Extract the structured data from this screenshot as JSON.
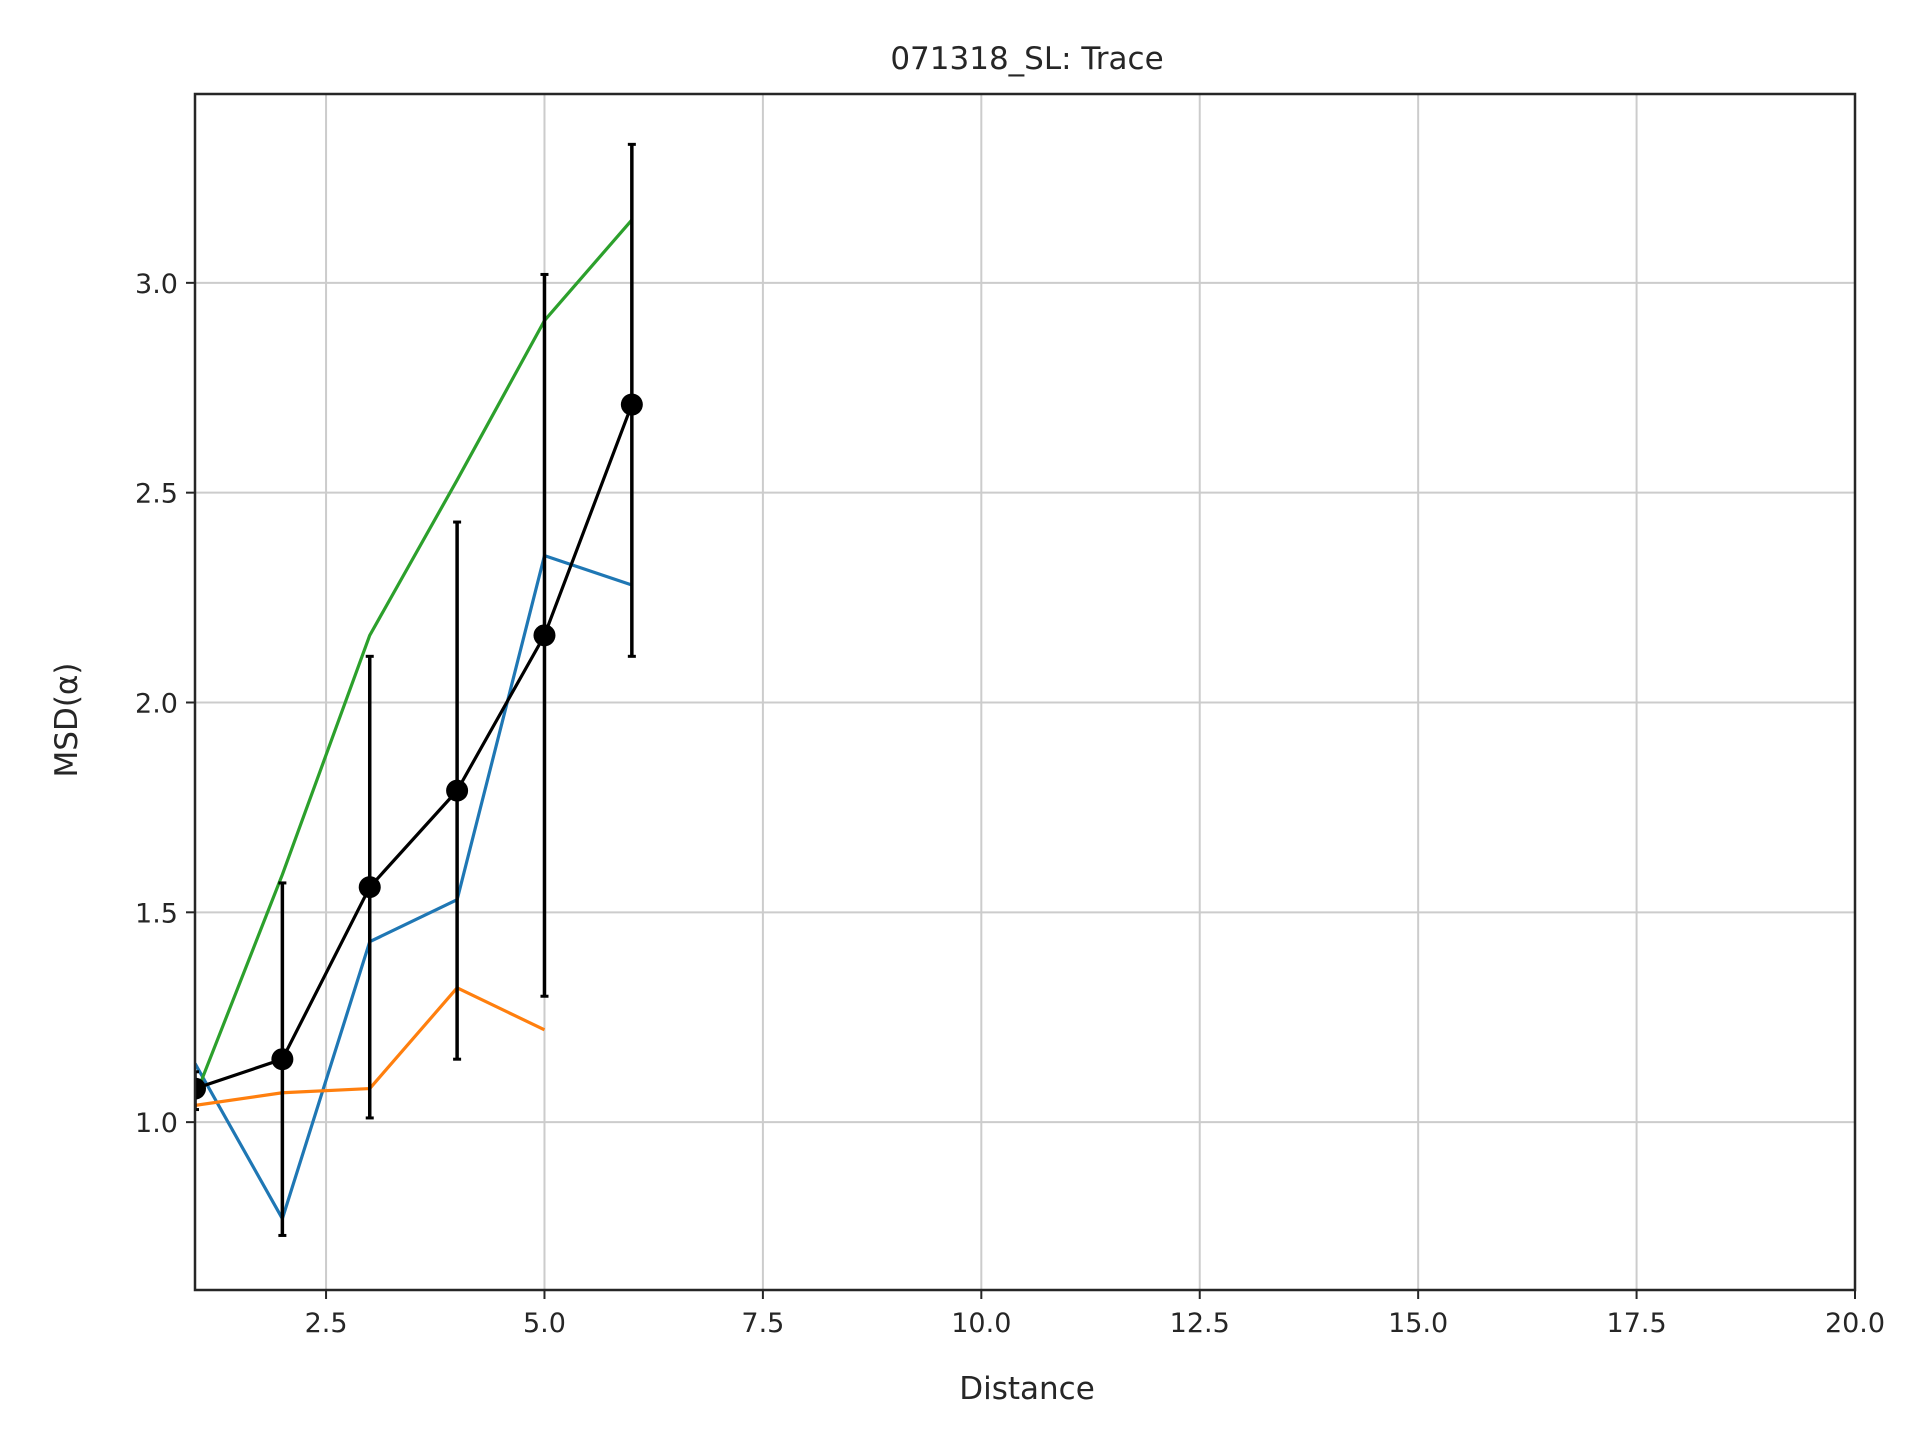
{
  "chart_data": {
    "type": "line",
    "title": "071318_SL: Trace",
    "xlabel": "Distance",
    "ylabel": "MSD(α)",
    "xlim": [
      1,
      20
    ],
    "ylim": [
      0.6,
      3.45
    ],
    "x_ticks": [
      2.5,
      5.0,
      7.5,
      10.0,
      12.5,
      15.0,
      17.5,
      20.0
    ],
    "x_tick_labels": [
      "2.5",
      "5.0",
      "7.5",
      "10.0",
      "12.5",
      "15.0",
      "17.5",
      "20.0"
    ],
    "y_ticks": [
      1.0,
      1.5,
      2.0,
      2.5,
      3.0
    ],
    "y_tick_labels": [
      "1.0",
      "1.5",
      "2.0",
      "2.5",
      "3.0"
    ],
    "grid": true,
    "series": [
      {
        "color": "#1f77b4",
        "x": [
          1,
          2,
          3,
          4,
          5,
          6
        ],
        "y": [
          1.14,
          0.77,
          1.43,
          1.53,
          2.35,
          2.28
        ]
      },
      {
        "color": "#ff7f0e",
        "x": [
          1,
          2,
          3,
          4,
          5
        ],
        "y": [
          1.04,
          1.07,
          1.08,
          1.32,
          1.22
        ]
      },
      {
        "color": "#2ca02c",
        "x": [
          1,
          2,
          3,
          4,
          5,
          6
        ],
        "y": [
          1.06,
          1.59,
          2.16,
          2.53,
          2.91,
          3.15
        ]
      },
      {
        "color": "#000000",
        "markers": true,
        "x": [
          1,
          2,
          3,
          4,
          5,
          6
        ],
        "y": [
          1.08,
          1.15,
          1.56,
          1.79,
          2.16,
          2.71
        ],
        "yerr_low": [
          1.03,
          0.73,
          1.01,
          1.15,
          1.3,
          2.11
        ],
        "yerr_high": [
          1.12,
          1.57,
          2.11,
          2.43,
          3.02,
          3.33
        ]
      }
    ]
  }
}
